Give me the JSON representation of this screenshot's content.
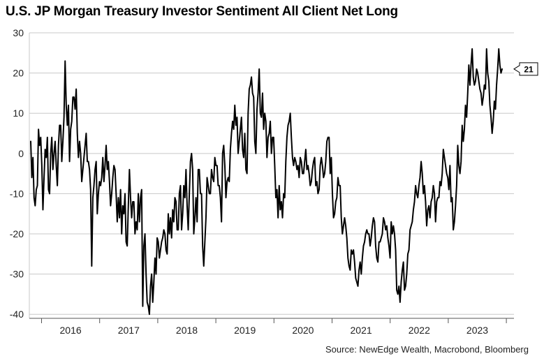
{
  "title": "U.S. JP Morgan Treasury Investor Sentiment All Client Net Long",
  "source": "Source: NewEdge Wealth, Macrobond, Bloomberg",
  "colors": {
    "line": "#000000",
    "grid": "#c8c8c8",
    "axis": "#555555",
    "callout_border": "#000000"
  },
  "chart_data": {
    "type": "line",
    "title": "U.S. JP Morgan Treasury Investor Sentiment All Client Net Long",
    "xlabel": "",
    "ylabel": "",
    "ylim": [
      -41,
      30
    ],
    "y_ticks": [
      "30",
      "20",
      "10",
      "0",
      "-10",
      "-20",
      "-30",
      "-40"
    ],
    "y_tick_values": [
      30,
      20,
      10,
      0,
      -10,
      -20,
      -30,
      -40
    ],
    "x_ticks": [
      "2016",
      "2017",
      "2018",
      "2019",
      "2020",
      "2021",
      "2022",
      "2023"
    ],
    "xlim": [
      "2015-06",
      "2023-12"
    ],
    "grid": "horizontal",
    "last_value_label": "21",
    "series": [
      {
        "frequency": "weekly",
        "start": "2015-06",
        "values": [
          3,
          -6,
          -1,
          -11,
          -13,
          -9,
          -8,
          6,
          2,
          4,
          -3,
          -14,
          -6,
          1,
          -1,
          4,
          -9,
          -10,
          0,
          4,
          -4,
          0,
          3,
          -3,
          -8,
          2,
          7,
          7,
          -2,
          3,
          9,
          23,
          12,
          7,
          12,
          -2,
          6,
          8,
          14,
          14,
          11,
          16,
          5,
          -1,
          3,
          0,
          -7,
          -4,
          -1,
          2,
          5,
          -2,
          -2,
          -4,
          -9,
          -28,
          -11,
          -8,
          -4,
          -2,
          -15,
          -10,
          -7,
          -8,
          -6,
          -1,
          -7,
          -3,
          2,
          -4,
          -2,
          -7,
          -13,
          -10,
          -6,
          -3,
          -4,
          -10,
          -17,
          -11,
          -16,
          -9,
          -20,
          -13,
          -15,
          -10,
          -22,
          -23,
          -13,
          -4,
          -11,
          -16,
          -12,
          -12,
          -20,
          -17,
          -19,
          -10,
          -17,
          -11,
          -9,
          -38,
          -23,
          -20,
          -30,
          -37,
          -38,
          -40,
          -33,
          -30,
          -37,
          -32,
          -26,
          -30,
          -21,
          -22,
          -26,
          -24,
          -22,
          -21,
          -19,
          -20,
          -24,
          -25,
          -15,
          -20,
          -16,
          -21,
          -14,
          -17,
          -11,
          -12,
          -19,
          -19,
          -10,
          -8,
          -19,
          -15,
          -8,
          -11,
          -4,
          -13,
          -19,
          -10,
          -2,
          0,
          -4,
          -20,
          -16,
          -11,
          -17,
          -4,
          -4,
          -10,
          -10,
          -23,
          -28,
          -22,
          -16,
          -6,
          -8,
          -10,
          -10,
          -4,
          -6,
          -7,
          -1,
          -3,
          -3,
          -8,
          -8,
          -11,
          -17,
          0,
          2,
          -3,
          -11,
          -7,
          -6,
          -7,
          1,
          5,
          8,
          6,
          12,
          7,
          9,
          0,
          3,
          6,
          9,
          1,
          -1,
          5,
          -4,
          -5,
          10,
          16,
          17,
          19,
          15,
          14,
          3,
          0,
          11,
          15,
          21,
          10,
          9,
          15,
          6,
          10,
          8,
          -1,
          4,
          5,
          8,
          0,
          4,
          4,
          -3,
          -11,
          -9,
          -16,
          -8,
          -14,
          -12,
          -16,
          -10,
          -11,
          -2,
          4,
          7,
          8,
          10,
          4,
          -1,
          -3,
          -1,
          -2,
          -4,
          -3,
          -6,
          -1,
          -2,
          -5,
          -5,
          -2,
          1,
          -4,
          -3,
          -5,
          -8,
          -7,
          -4,
          -2,
          -1,
          -8,
          -7,
          -10,
          -9,
          -3,
          -1,
          -3,
          -6,
          -5,
          -2,
          3,
          4,
          4,
          -5,
          -1,
          -10,
          -16,
          -15,
          -12,
          -11,
          -6,
          -8,
          -8,
          -16,
          -20,
          -18,
          -16,
          -18,
          -21,
          -26,
          -28,
          -29,
          -24,
          -25,
          -24,
          -27,
          -31,
          -32,
          -33,
          -29,
          -27,
          -30,
          -26,
          -23,
          -22,
          -20,
          -19,
          -20,
          -20,
          -23,
          -21,
          -18,
          -16,
          -17,
          -23,
          -26,
          -27,
          -22,
          -22,
          -21,
          -20,
          -16,
          -17,
          -19,
          -18,
          -21,
          -23,
          -26,
          -17,
          -20,
          -18,
          -20,
          -24,
          -34,
          -35,
          -33,
          -37,
          -32,
          -29,
          -27,
          -34,
          -33,
          -30,
          -25,
          -24,
          -19,
          -18,
          -17,
          -14,
          -12,
          -8,
          -10,
          -11,
          -8,
          -6,
          -2,
          -5,
          -10,
          -8,
          -12,
          -18,
          -14,
          -13,
          -16,
          -12,
          -11,
          -8,
          -10,
          -17,
          -12,
          -11,
          -11,
          -7,
          -8,
          -5,
          1,
          -1,
          -3,
          -5,
          -6,
          -9,
          -3,
          -12,
          -11,
          -19,
          -17,
          -13,
          -8,
          2,
          -3,
          -5,
          -2,
          7,
          3,
          6,
          12,
          9,
          15,
          22,
          17,
          22,
          26,
          19,
          17,
          18,
          21,
          20,
          18,
          16,
          15,
          12,
          14,
          17,
          16,
          26,
          20,
          18,
          12,
          9,
          5,
          8,
          13,
          11,
          17,
          21,
          26,
          22,
          20,
          21
        ]
      }
    ]
  }
}
